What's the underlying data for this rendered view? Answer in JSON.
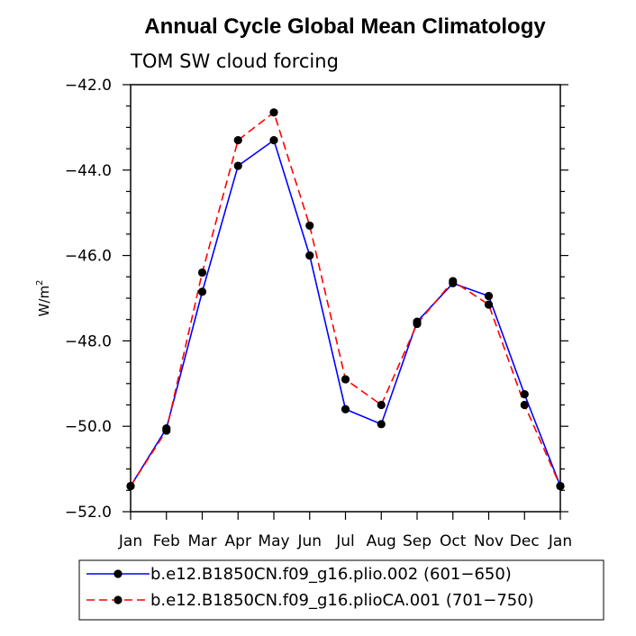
{
  "chart_data": {
    "type": "line",
    "title": "Annual Cycle Global Mean Climatology",
    "subtitle": "TOM SW cloud forcing",
    "ylabel": "W/m",
    "ylabel_superscript": "2",
    "xlabel": "",
    "categories": [
      "Jan",
      "Feb",
      "Mar",
      "Apr",
      "May",
      "Jun",
      "Jul",
      "Aug",
      "Sep",
      "Oct",
      "Nov",
      "Dec",
      "Jan"
    ],
    "ylim": [
      -52.0,
      -42.0
    ],
    "yticks": [
      -52.0,
      -50.0,
      -48.0,
      -46.0,
      -44.0,
      -42.0
    ],
    "ytick_labels": [
      "−52.0",
      "−50.0",
      "−48.0",
      "−46.0",
      "−44.0",
      "−42.0"
    ],
    "series": [
      {
        "name": "b.e12.B1850CN.f09_g16.plio.002 (601−650)",
        "color": "#0000ff",
        "dash": "solid",
        "values": [
          -51.4,
          -50.05,
          -46.85,
          -43.9,
          -43.3,
          -46.0,
          -49.6,
          -49.95,
          -47.55,
          -46.65,
          -46.95,
          -49.25,
          -51.4
        ]
      },
      {
        "name": "b.e12.B1850CN.f09_g16.plioCA.001 (701−750)",
        "color": "#ff0000",
        "dash": "dashed",
        "values": [
          -51.4,
          -50.1,
          -46.4,
          -43.3,
          -42.65,
          -45.3,
          -48.9,
          -49.5,
          -47.6,
          -46.6,
          -47.15,
          -49.5,
          -51.4
        ]
      }
    ],
    "legend_location": "bottom",
    "grid": false
  }
}
